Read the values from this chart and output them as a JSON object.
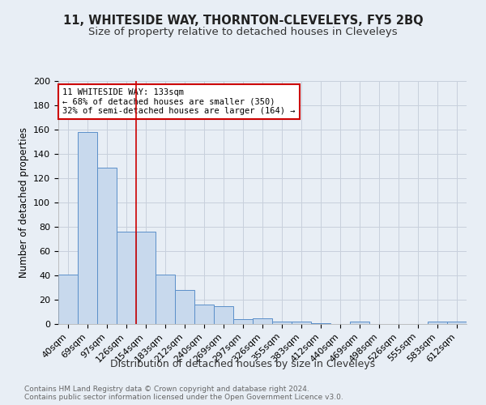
{
  "title": "11, WHITESIDE WAY, THORNTON-CLEVELEYS, FY5 2BQ",
  "subtitle": "Size of property relative to detached houses in Cleveleys",
  "xlabel": "Distribution of detached houses by size in Cleveleys",
  "ylabel": "Number of detached properties",
  "categories": [
    "40sqm",
    "69sqm",
    "97sqm",
    "126sqm",
    "154sqm",
    "183sqm",
    "212sqm",
    "240sqm",
    "269sqm",
    "297sqm",
    "326sqm",
    "355sqm",
    "383sqm",
    "412sqm",
    "440sqm",
    "469sqm",
    "498sqm",
    "526sqm",
    "555sqm",
    "583sqm",
    "612sqm"
  ],
  "values": [
    41,
    158,
    129,
    76,
    76,
    41,
    28,
    16,
    15,
    4,
    5,
    2,
    2,
    1,
    0,
    2,
    0,
    0,
    0,
    2,
    2
  ],
  "bar_color": "#c8d9ed",
  "bar_edge_color": "#5b8fc9",
  "grid_color": "#c8d0dc",
  "background_color": "#e8eef5",
  "vline_x_index": 3,
  "vline_color": "#cc0000",
  "annotation_text": "11 WHITESIDE WAY: 133sqm\n← 68% of detached houses are smaller (350)\n32% of semi-detached houses are larger (164) →",
  "annotation_box_facecolor": "#ffffff",
  "annotation_box_edgecolor": "#cc0000",
  "ylim": [
    0,
    200
  ],
  "yticks": [
    0,
    20,
    40,
    60,
    80,
    100,
    120,
    140,
    160,
    180,
    200
  ],
  "footer_text": "Contains HM Land Registry data © Crown copyright and database right 2024.\nContains public sector information licensed under the Open Government Licence v3.0.",
  "title_fontsize": 10.5,
  "subtitle_fontsize": 9.5,
  "xlabel_fontsize": 9,
  "ylabel_fontsize": 8.5,
  "tick_fontsize": 8,
  "annotation_fontsize": 7.5,
  "footer_fontsize": 6.5
}
